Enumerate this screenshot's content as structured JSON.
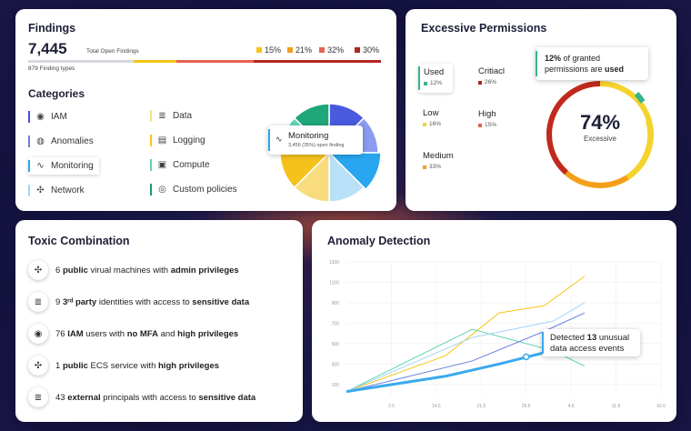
{
  "findings": {
    "title": "Findings",
    "total": "7,445",
    "total_label": "Total Open Findings",
    "types": "879 Finding types",
    "legend": [
      {
        "pct": "15%",
        "color": "#f5c518"
      },
      {
        "pct": "21%",
        "color": "#f59e1b"
      },
      {
        "pct": "32%",
        "color": "#e4624f"
      },
      {
        "pct": "30%",
        "color": "#b3261e"
      }
    ],
    "categories_title": "Categories",
    "categories": [
      {
        "label": "IAM",
        "icon": "fingerprint-icon",
        "color": "#4256d6"
      },
      {
        "label": "Anomalies",
        "icon": "anomalies-icon",
        "color": "#6a7fe0"
      },
      {
        "label": "Monitoring",
        "icon": "pulse-icon",
        "color": "#2aa6f0"
      },
      {
        "label": "Network",
        "icon": "network-icon",
        "color": "#9fd6f7"
      },
      {
        "label": "Data",
        "icon": "database-icon",
        "color": "#fce082"
      },
      {
        "label": "Logging",
        "icon": "logging-icon",
        "color": "#f8c41b"
      },
      {
        "label": "Compute",
        "icon": "chip-icon",
        "color": "#5fd3b4"
      },
      {
        "label": "Custom policies",
        "icon": "policy-icon",
        "color": "#1e9a72"
      }
    ],
    "tooltip": {
      "title": "Monitoring",
      "sub": "3,456 (35%) open finding"
    },
    "pie_colors": [
      "#4a5ae0",
      "#8a9bf0",
      "#27a6ef",
      "#b8e1f8",
      "#f9dc7d",
      "#f5c21b",
      "#5fd6b6",
      "#1fa77a"
    ]
  },
  "permissions": {
    "title": "Excessive Permissions",
    "items": [
      {
        "label": "Used",
        "value": "12%",
        "color": "#36b48c"
      },
      {
        "label": "Low",
        "value": "16%",
        "color": "#f5d32d"
      },
      {
        "label": "Medium",
        "value": "33%",
        "color": "#f59e1b"
      },
      {
        "label": "Critiacl",
        "value": "26%",
        "color": "#b3261e"
      },
      {
        "label": "High",
        "value": "15%",
        "color": "#e4624f"
      }
    ],
    "callout_pct": "12%",
    "callout_text_a": "of granted",
    "callout_text_b": "permissions are",
    "callout_used": "used",
    "gauge_value": "74%",
    "gauge_label": "Excessive"
  },
  "toxic": {
    "title": "Toxic Combination",
    "rows": [
      {
        "icon": "network-icon",
        "parts": [
          [
            "6 ",
            false
          ],
          [
            "public",
            true
          ],
          [
            " virual machines with ",
            false
          ],
          [
            "admin privileges",
            true
          ]
        ]
      },
      {
        "icon": "database-icon",
        "parts": [
          [
            "9 ",
            false
          ],
          [
            "3ʳᵈ party",
            true
          ],
          [
            " identities with access to ",
            false
          ],
          [
            "sensitive data",
            true
          ]
        ]
      },
      {
        "icon": "fingerprint-icon",
        "parts": [
          [
            "76 ",
            false
          ],
          [
            "IAM",
            true
          ],
          [
            " users with ",
            false
          ],
          [
            "no MFA",
            true
          ],
          [
            " and ",
            false
          ],
          [
            "high privileges",
            true
          ]
        ]
      },
      {
        "icon": "network-icon",
        "parts": [
          [
            "1 ",
            false
          ],
          [
            "public",
            true
          ],
          [
            " ECS service with ",
            false
          ],
          [
            "high privileges",
            true
          ]
        ]
      },
      {
        "icon": "database-icon",
        "parts": [
          [
            "43 ",
            false
          ],
          [
            "external",
            true
          ],
          [
            " principals with access to ",
            false
          ],
          [
            "sensitive data",
            true
          ]
        ]
      }
    ]
  },
  "anomaly": {
    "title": "Anomaly Detection",
    "tooltip_a": "Detected",
    "tooltip_num": "13",
    "tooltip_b": "unusual",
    "tooltip_c": "data access events"
  },
  "chart_data": {
    "type": "line",
    "title": "Anomaly Detection",
    "x_ticks": [
      "2.5",
      "14.5",
      "21.5",
      "26.5",
      "4.6",
      "11.6",
      "16.6"
    ],
    "y_ticks": [
      "100",
      "300",
      "500",
      "700",
      "900",
      "1100",
      "1300"
    ],
    "ylim": [
      0,
      1300
    ],
    "xlim": [
      0,
      7
    ],
    "grid": true,
    "series": [
      {
        "color": "#f5c518",
        "points": [
          [
            0,
            30
          ],
          [
            2.2,
            380
          ],
          [
            3.4,
            800
          ],
          [
            4.4,
            870
          ],
          [
            5.3,
            1160
          ]
        ]
      },
      {
        "color": "#5fd3b4",
        "points": [
          [
            0,
            30
          ],
          [
            2.8,
            640
          ],
          [
            4.6,
            430
          ],
          [
            5.3,
            280
          ]
        ]
      },
      {
        "color": "#a7d3f5",
        "points": [
          [
            0,
            30
          ],
          [
            2.8,
            560
          ],
          [
            4.6,
            720
          ],
          [
            5.3,
            900
          ]
        ]
      },
      {
        "color": "#6a7fe0",
        "points": [
          [
            0,
            30
          ],
          [
            2.8,
            330
          ],
          [
            4.4,
            620
          ],
          [
            5.3,
            800
          ]
        ]
      },
      {
        "color": "#3aa9ef",
        "points": [
          [
            0,
            30
          ],
          [
            2.2,
            180
          ],
          [
            3.4,
            300
          ],
          [
            5.3,
            510
          ]
        ]
      }
    ]
  }
}
